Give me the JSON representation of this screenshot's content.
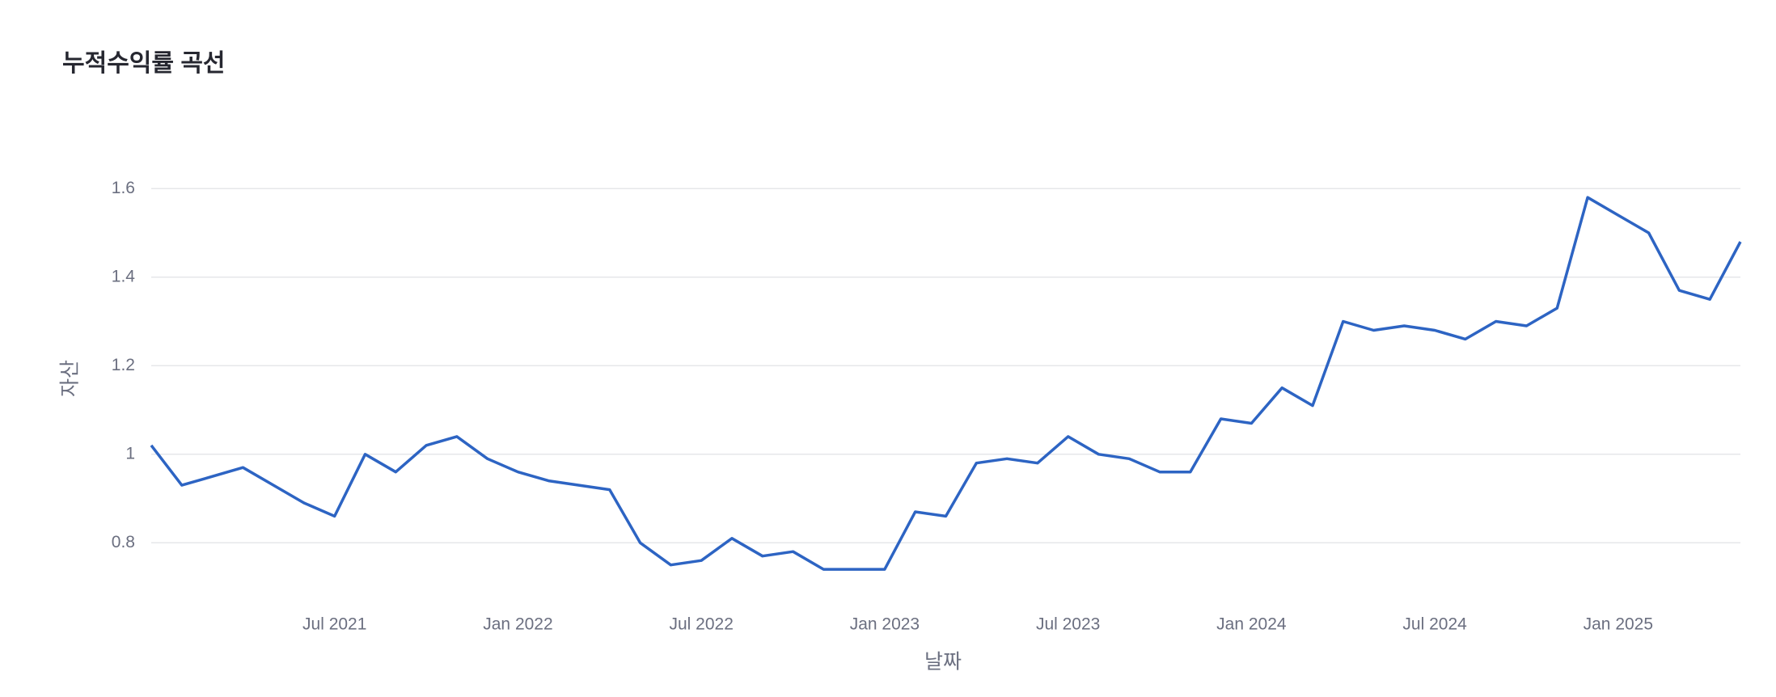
{
  "chart_data": {
    "type": "line",
    "title": "누적수익률 곡선",
    "x_label": "날짜",
    "y_label": "자산",
    "x": [
      "2021-01",
      "2021-02",
      "2021-03",
      "2021-04",
      "2021-05",
      "2021-06",
      "2021-07",
      "2021-08",
      "2021-09",
      "2021-10",
      "2021-11",
      "2021-12",
      "2022-01",
      "2022-02",
      "2022-03",
      "2022-04",
      "2022-05",
      "2022-06",
      "2022-07",
      "2022-08",
      "2022-09",
      "2022-10",
      "2022-11",
      "2022-12",
      "2023-01",
      "2023-02",
      "2023-03",
      "2023-04",
      "2023-05",
      "2023-06",
      "2023-07",
      "2023-08",
      "2023-09",
      "2023-10",
      "2023-11",
      "2023-12",
      "2024-01",
      "2024-02",
      "2024-03",
      "2024-04",
      "2024-05",
      "2024-06",
      "2024-07",
      "2024-08",
      "2024-09",
      "2024-10",
      "2024-11",
      "2024-12",
      "2025-01",
      "2025-02",
      "2025-03",
      "2025-04",
      "2025-05"
    ],
    "series": [
      {
        "name": "자산",
        "color": "#2d64c3",
        "values": [
          1.02,
          0.93,
          0.95,
          0.97,
          0.93,
          0.89,
          0.86,
          1.0,
          0.96,
          1.02,
          1.04,
          0.99,
          0.96,
          0.94,
          0.93,
          0.92,
          0.8,
          0.75,
          0.76,
          0.81,
          0.77,
          0.78,
          0.74,
          0.74,
          0.74,
          0.87,
          0.86,
          0.98,
          0.99,
          0.98,
          1.04,
          1.0,
          0.99,
          0.96,
          0.96,
          1.08,
          1.07,
          1.15,
          1.11,
          1.3,
          1.28,
          1.29,
          1.28,
          1.26,
          1.3,
          1.29,
          1.33,
          1.58,
          1.54,
          1.5,
          1.37,
          1.35,
          1.48
        ]
      }
    ],
    "xlim": [
      "2021-01",
      "2025-05"
    ],
    "xticks": [
      {
        "value": "2021-07",
        "label": "Jul 2021"
      },
      {
        "value": "2022-01",
        "label": "Jan 2022"
      },
      {
        "value": "2022-07",
        "label": "Jul 2022"
      },
      {
        "value": "2023-01",
        "label": "Jan 2023"
      },
      {
        "value": "2023-07",
        "label": "Jul 2023"
      },
      {
        "value": "2024-01",
        "label": "Jan 2024"
      },
      {
        "value": "2024-07",
        "label": "Jul 2024"
      },
      {
        "value": "2025-01",
        "label": "Jan 2025"
      }
    ],
    "ylim": [
      0.68,
      1.69
    ],
    "yticks": [
      0.8,
      1,
      1.2,
      1.4,
      1.6
    ],
    "grid": true
  }
}
